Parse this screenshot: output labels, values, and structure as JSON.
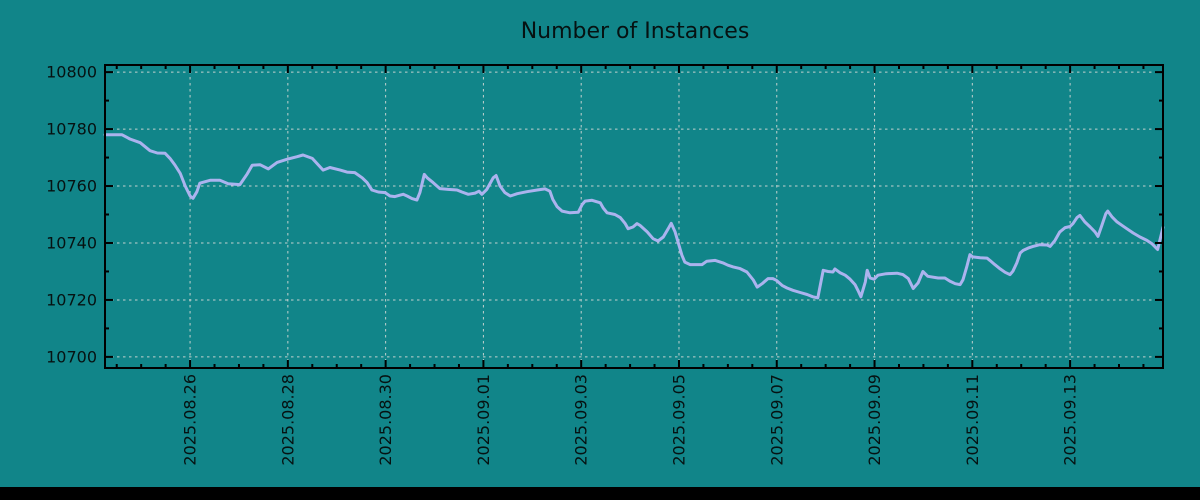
{
  "page": {
    "background_color": "#118589",
    "bottom_bar_color": "#000000"
  },
  "chart_data": {
    "type": "line",
    "title": "Number of Instances",
    "colors": {
      "series_line": "#ABB3EE",
      "grid_line": "#C3D1CE",
      "axis": "#000000",
      "text": "#061212"
    },
    "legend": "none",
    "grid": "on",
    "x_axis": {
      "unit": "days since 2025-08-24 00:00",
      "t_min": 0.26,
      "t_max": 21.9,
      "major_tick_t": [
        2,
        4,
        6,
        8,
        10,
        12,
        14,
        16,
        18,
        20
      ],
      "tick_labels": [
        "2025.08.26",
        "2025.08.28",
        "2025.08.30",
        "2025.09.01",
        "2025.09.03",
        "2025.09.05",
        "2025.09.07",
        "2025.09.09",
        "2025.09.11",
        "2025.09.13"
      ],
      "minor_step_days": 0.5
    },
    "y_axis": {
      "v_min": 10696.1,
      "v_max": 10802.5,
      "major_ticks": [
        10700,
        10720,
        10740,
        10760,
        10780,
        10800
      ],
      "tick_labels": [
        "10700",
        "10720",
        "10740",
        "10760",
        "10780",
        "10800"
      ],
      "minor_step": 10
    },
    "points": [
      [
        0.26,
        10778
      ],
      [
        0.61,
        10778
      ],
      [
        0.77,
        10776.5
      ],
      [
        0.98,
        10775.2
      ],
      [
        1.18,
        10772.4
      ],
      [
        1.33,
        10771.6
      ],
      [
        1.49,
        10771.5
      ],
      [
        1.59,
        10769.7
      ],
      [
        1.69,
        10767.4
      ],
      [
        1.8,
        10764.4
      ],
      [
        1.9,
        10760.0
      ],
      [
        2.0,
        10756.5
      ],
      [
        2.06,
        10755.7
      ],
      [
        2.14,
        10758.0
      ],
      [
        2.2,
        10761.0
      ],
      [
        2.41,
        10762.0
      ],
      [
        2.61,
        10762.0
      ],
      [
        2.78,
        10760.8
      ],
      [
        3.02,
        10760.5
      ],
      [
        3.17,
        10764.3
      ],
      [
        3.27,
        10767.3
      ],
      [
        3.43,
        10767.5
      ],
      [
        3.6,
        10766.0
      ],
      [
        3.78,
        10768.3
      ],
      [
        3.98,
        10769.4
      ],
      [
        4.19,
        10770.3
      ],
      [
        4.31,
        10770.9
      ],
      [
        4.5,
        10769.7
      ],
      [
        4.72,
        10765.6
      ],
      [
        4.86,
        10766.5
      ],
      [
        5.07,
        10765.6
      ],
      [
        5.21,
        10764.9
      ],
      [
        5.37,
        10764.7
      ],
      [
        5.52,
        10762.9
      ],
      [
        5.62,
        10761.2
      ],
      [
        5.72,
        10758.6
      ],
      [
        5.85,
        10757.9
      ],
      [
        5.99,
        10757.7
      ],
      [
        6.09,
        10756.5
      ],
      [
        6.19,
        10756.3
      ],
      [
        6.3,
        10756.8
      ],
      [
        6.36,
        10757.1
      ],
      [
        6.44,
        10756.5
      ],
      [
        6.54,
        10755.6
      ],
      [
        6.64,
        10755.1
      ],
      [
        6.7,
        10757.7
      ],
      [
        6.79,
        10764.1
      ],
      [
        6.85,
        10762.9
      ],
      [
        6.97,
        10761.2
      ],
      [
        7.11,
        10759.1
      ],
      [
        7.28,
        10758.8
      ],
      [
        7.46,
        10758.6
      ],
      [
        7.56,
        10757.9
      ],
      [
        7.69,
        10757.1
      ],
      [
        7.83,
        10757.5
      ],
      [
        7.91,
        10758.2
      ],
      [
        7.97,
        10757.1
      ],
      [
        8.07,
        10758.8
      ],
      [
        8.2,
        10762.9
      ],
      [
        8.26,
        10763.7
      ],
      [
        8.34,
        10760.0
      ],
      [
        8.44,
        10757.7
      ],
      [
        8.55,
        10756.5
      ],
      [
        8.69,
        10757.3
      ],
      [
        8.89,
        10758.0
      ],
      [
        9.1,
        10758.6
      ],
      [
        9.26,
        10759.0
      ],
      [
        9.36,
        10758.2
      ],
      [
        9.42,
        10755.3
      ],
      [
        9.51,
        10752.7
      ],
      [
        9.61,
        10751.2
      ],
      [
        9.77,
        10750.6
      ],
      [
        9.94,
        10750.8
      ],
      [
        10.02,
        10753.5
      ],
      [
        10.08,
        10754.7
      ],
      [
        10.22,
        10755.0
      ],
      [
        10.39,
        10754.1
      ],
      [
        10.45,
        10752.3
      ],
      [
        10.53,
        10750.6
      ],
      [
        10.69,
        10750.0
      ],
      [
        10.8,
        10748.9
      ],
      [
        10.9,
        10746.8
      ],
      [
        10.96,
        10745.0
      ],
      [
        11.06,
        10745.6
      ],
      [
        11.14,
        10746.8
      ],
      [
        11.2,
        10746.2
      ],
      [
        11.35,
        10743.9
      ],
      [
        11.47,
        10741.5
      ],
      [
        11.57,
        10740.7
      ],
      [
        11.68,
        10742.1
      ],
      [
        11.78,
        10745.0
      ],
      [
        11.84,
        10746.9
      ],
      [
        11.92,
        10743.9
      ],
      [
        12.0,
        10739.2
      ],
      [
        12.06,
        10735.7
      ],
      [
        12.12,
        10733.3
      ],
      [
        12.23,
        10732.4
      ],
      [
        12.47,
        10732.4
      ],
      [
        12.57,
        10733.6
      ],
      [
        12.74,
        10733.9
      ],
      [
        12.9,
        10733.0
      ],
      [
        13.0,
        10732.2
      ],
      [
        13.11,
        10731.6
      ],
      [
        13.25,
        10731.0
      ],
      [
        13.39,
        10729.8
      ],
      [
        13.52,
        10727.0
      ],
      [
        13.6,
        10724.5
      ],
      [
        13.7,
        10725.7
      ],
      [
        13.82,
        10727.5
      ],
      [
        13.92,
        10727.5
      ],
      [
        13.99,
        10726.9
      ],
      [
        14.11,
        10725.1
      ],
      [
        14.21,
        10724.2
      ],
      [
        14.33,
        10723.4
      ],
      [
        14.48,
        10722.6
      ],
      [
        14.62,
        10721.9
      ],
      [
        14.74,
        10721.1
      ],
      [
        14.84,
        10720.7
      ],
      [
        14.95,
        10730.4
      ],
      [
        15.05,
        10730.0
      ],
      [
        15.15,
        10729.8
      ],
      [
        15.19,
        10730.9
      ],
      [
        15.29,
        10729.6
      ],
      [
        15.4,
        10728.7
      ],
      [
        15.5,
        10727.3
      ],
      [
        15.6,
        10725.4
      ],
      [
        15.66,
        10723.4
      ],
      [
        15.72,
        10721.1
      ],
      [
        15.81,
        10726.3
      ],
      [
        15.85,
        10730.4
      ],
      [
        15.91,
        10727.7
      ],
      [
        15.99,
        10727.3
      ],
      [
        16.07,
        10728.7
      ],
      [
        16.24,
        10729.2
      ],
      [
        16.46,
        10729.4
      ],
      [
        16.58,
        10728.9
      ],
      [
        16.69,
        10727.5
      ],
      [
        16.79,
        10724.0
      ],
      [
        16.89,
        10726.0
      ],
      [
        16.99,
        10730.0
      ],
      [
        17.09,
        10728.3
      ],
      [
        17.3,
        10727.7
      ],
      [
        17.44,
        10727.7
      ],
      [
        17.54,
        10726.6
      ],
      [
        17.65,
        10725.7
      ],
      [
        17.75,
        10725.4
      ],
      [
        17.81,
        10727.1
      ],
      [
        17.89,
        10731.8
      ],
      [
        17.95,
        10735.9
      ],
      [
        18.01,
        10735.1
      ],
      [
        18.16,
        10734.8
      ],
      [
        18.3,
        10734.7
      ],
      [
        18.36,
        10733.9
      ],
      [
        18.46,
        10732.4
      ],
      [
        18.57,
        10730.9
      ],
      [
        18.67,
        10729.7
      ],
      [
        18.77,
        10728.9
      ],
      [
        18.83,
        10730.1
      ],
      [
        18.91,
        10733.0
      ],
      [
        18.98,
        10736.5
      ],
      [
        19.04,
        10737.4
      ],
      [
        19.14,
        10738.2
      ],
      [
        19.24,
        10738.8
      ],
      [
        19.38,
        10739.4
      ],
      [
        19.53,
        10739.3
      ],
      [
        19.59,
        10738.8
      ],
      [
        19.69,
        10740.9
      ],
      [
        19.79,
        10743.9
      ],
      [
        19.9,
        10745.4
      ],
      [
        20.0,
        10745.8
      ],
      [
        20.06,
        10746.8
      ],
      [
        20.14,
        10748.9
      ],
      [
        20.2,
        10749.7
      ],
      [
        20.3,
        10747.4
      ],
      [
        20.41,
        10745.6
      ],
      [
        20.51,
        10743.9
      ],
      [
        20.57,
        10742.3
      ],
      [
        20.65,
        10746.2
      ],
      [
        20.73,
        10750.3
      ],
      [
        20.77,
        10751.2
      ],
      [
        20.86,
        10749.1
      ],
      [
        20.96,
        10747.4
      ],
      [
        21.06,
        10746.2
      ],
      [
        21.16,
        10745.0
      ],
      [
        21.29,
        10743.5
      ],
      [
        21.43,
        10742.1
      ],
      [
        21.57,
        10740.9
      ],
      [
        21.67,
        10739.8
      ],
      [
        21.79,
        10737.7
      ],
      [
        21.87,
        10743.3
      ],
      [
        21.9,
        10745.5
      ]
    ]
  }
}
